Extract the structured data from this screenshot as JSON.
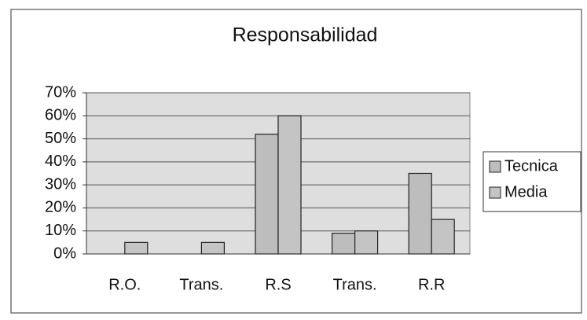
{
  "chart_data": {
    "type": "bar",
    "title": "Responsabilidad",
    "categories": [
      "R.O.",
      "Trans.",
      "R.S",
      "Trans.",
      "R.R"
    ],
    "series": [
      {
        "name": "Tecnica",
        "color": "#bdbdbd",
        "values": [
          0,
          0,
          52,
          9,
          35
        ]
      },
      {
        "name": "Media",
        "color": "#c4c4c4",
        "values": [
          5,
          5,
          60,
          10,
          15
        ]
      }
    ],
    "ylim": [
      0,
      70
    ],
    "yticks": [
      {
        "value": 0,
        "label": "0%"
      },
      {
        "value": 10,
        "label": "10%"
      },
      {
        "value": 20,
        "label": "20%"
      },
      {
        "value": 30,
        "label": "30%"
      },
      {
        "value": 40,
        "label": "40%"
      },
      {
        "value": 50,
        "label": "50%"
      },
      {
        "value": 60,
        "label": "60%"
      },
      {
        "value": 70,
        "label": "70%"
      }
    ],
    "grid": true,
    "legend": "right"
  }
}
